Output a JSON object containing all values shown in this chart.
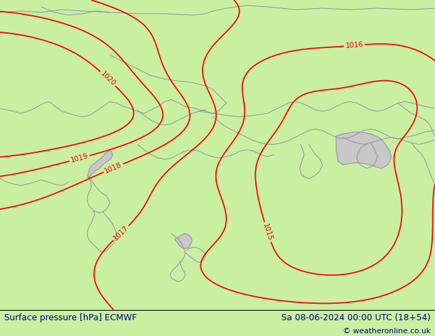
{
  "title_left": "Surface pressure [hPa] ECMWF",
  "title_right": "Sa 08-06-2024 00:00 UTC (18+54)",
  "copyright": "© weatheronline.co.uk",
  "background_color": "#c8f0a0",
  "sea_color": "#c8c8c8",
  "contour_color": "#ff0000",
  "border_color": "#9090a8",
  "text_color": "#000080",
  "footer_bg": "#ffffff",
  "pressure_levels": [
    1015,
    1016,
    1017,
    1018,
    1019,
    1020
  ],
  "figsize": [
    6.34,
    4.9
  ],
  "dpi": 100
}
